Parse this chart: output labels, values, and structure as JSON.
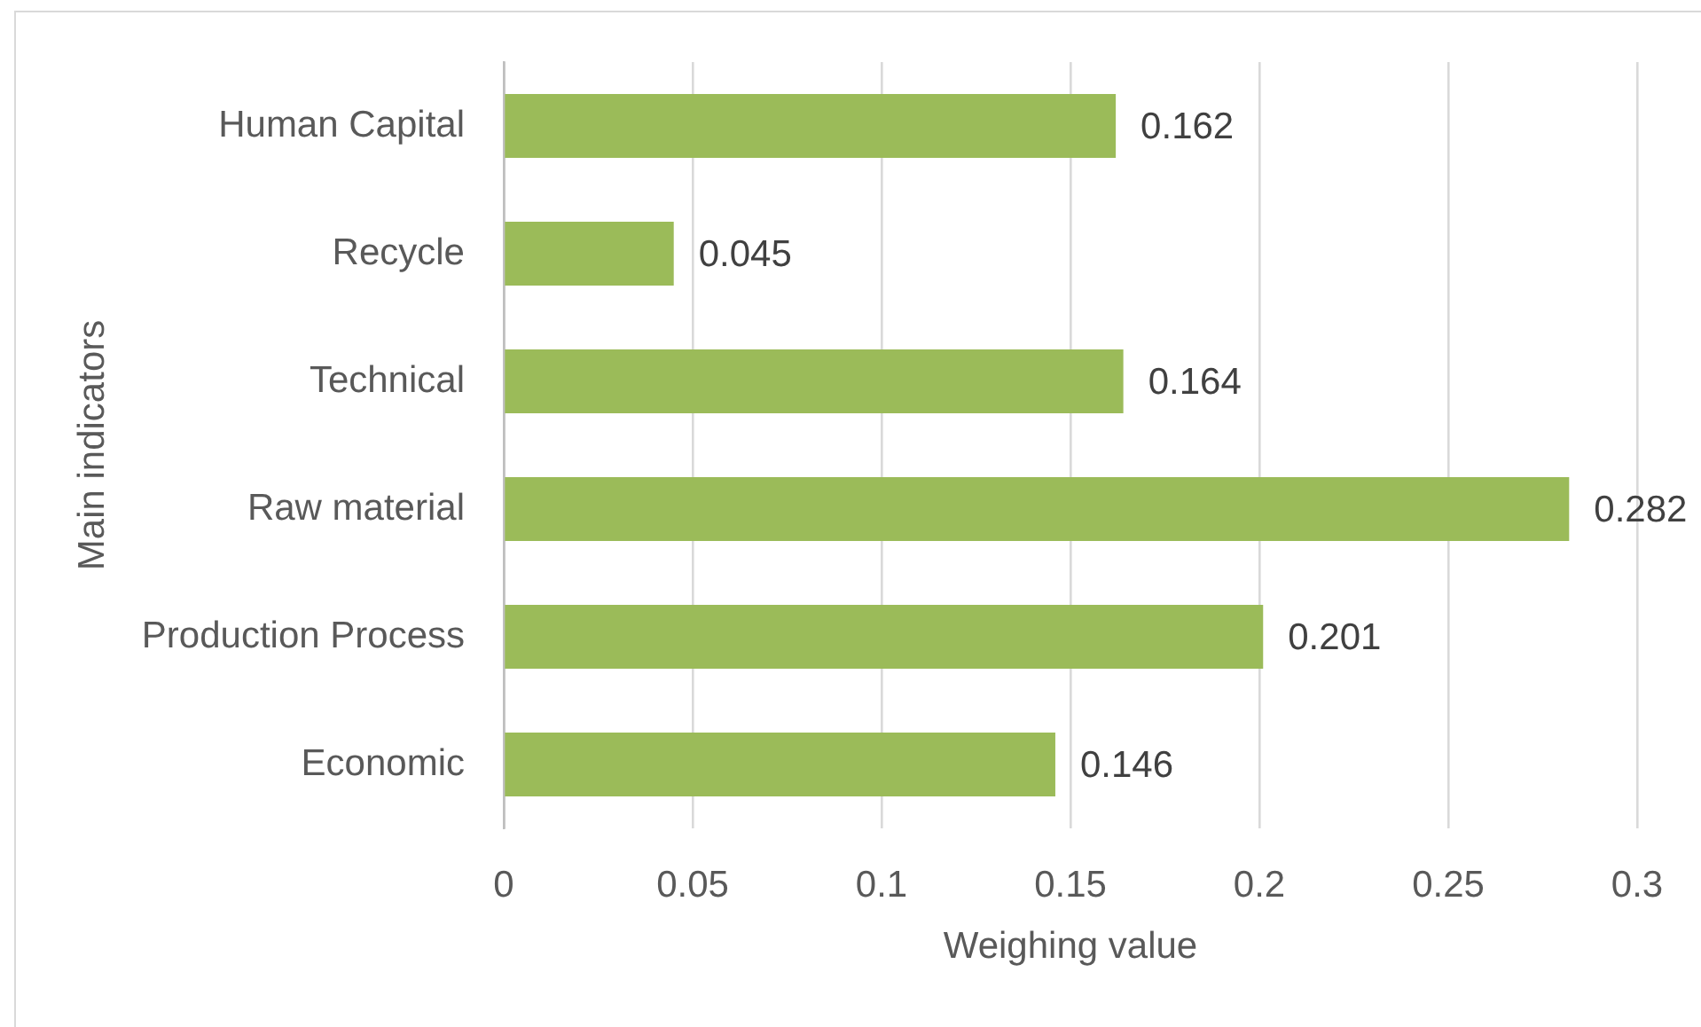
{
  "chart_data": {
    "type": "bar",
    "orientation": "horizontal",
    "xlabel": "Weighing value",
    "ylabel": "Main indicators",
    "categories": [
      "Human Capital",
      "Recycle",
      "Technical",
      "Raw material",
      "Production Process",
      "Economic"
    ],
    "values": [
      0.162,
      0.045,
      0.164,
      0.282,
      0.201,
      0.146
    ],
    "color": "#9bbb59",
    "xlim": [
      0,
      0.3
    ],
    "xticks": [
      0,
      0.05,
      0.1,
      0.15,
      0.2,
      0.25,
      0.3
    ],
    "grid": "x",
    "data_labels": true
  }
}
